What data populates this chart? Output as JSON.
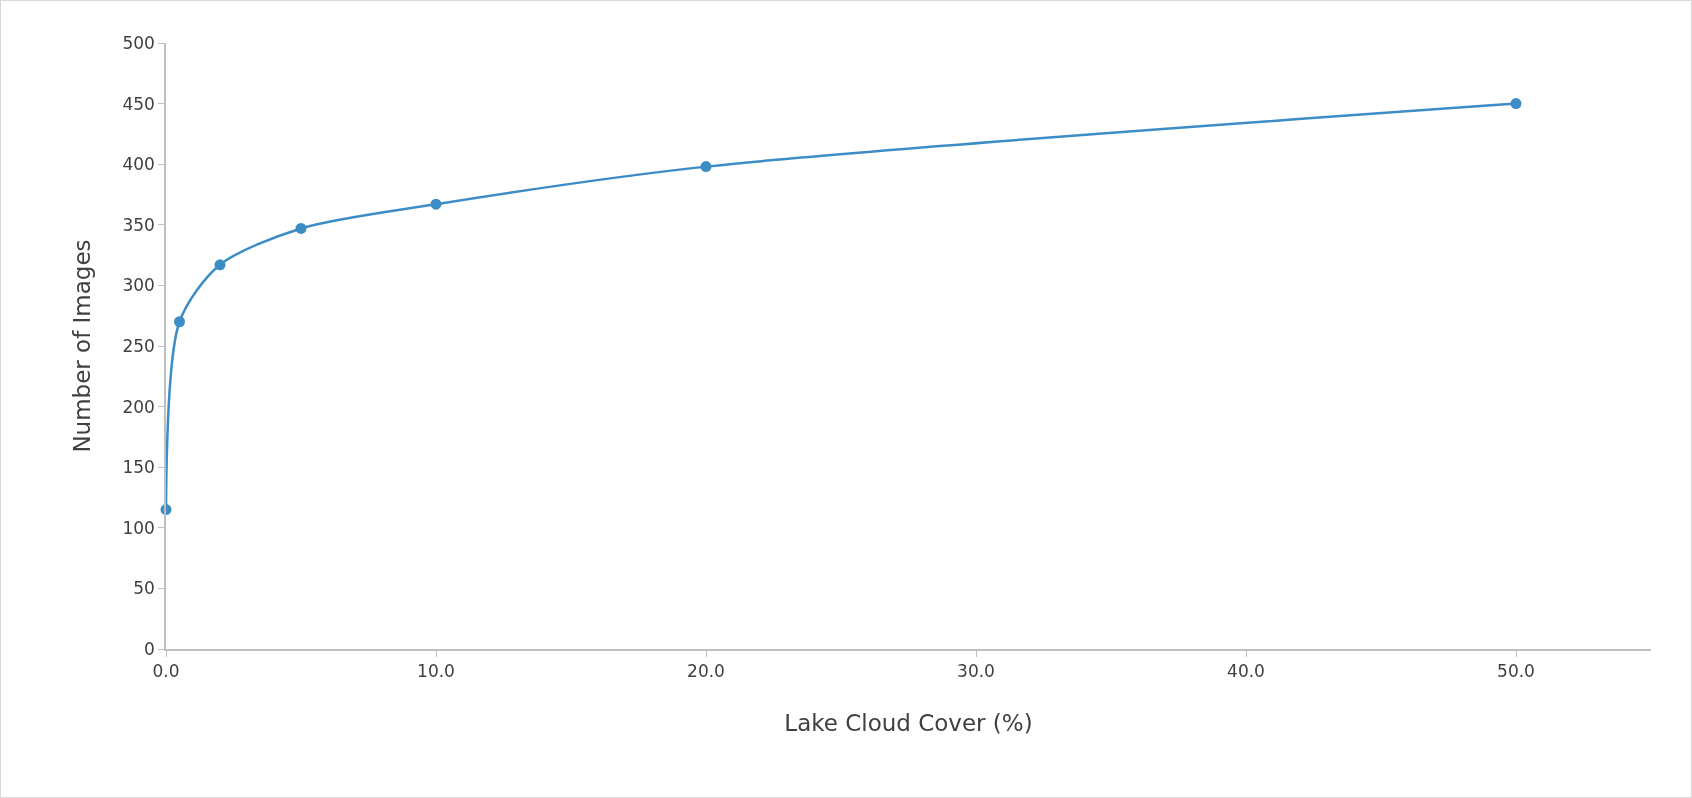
{
  "chart_data": {
    "type": "line",
    "xlabel": "Lake Cloud Cover (%)",
    "ylabel": "Number of Images",
    "x": [
      0,
      0.5,
      2,
      5,
      10,
      20,
      50
    ],
    "series": [
      {
        "color": "#3c8dc5",
        "values": [
          115,
          270,
          317,
          347,
          367,
          398,
          450
        ]
      }
    ],
    "xlim": [
      0,
      55
    ],
    "xticks": [
      {
        "value": 0,
        "label": "0.0"
      },
      {
        "value": 10,
        "label": "10.0"
      },
      {
        "value": 20,
        "label": "20.0"
      },
      {
        "value": 30,
        "label": "30.0"
      },
      {
        "value": 40,
        "label": "40.0"
      },
      {
        "value": 50,
        "label": "50.0"
      }
    ],
    "ylim": [
      0,
      500
    ],
    "yticks": [
      0,
      50,
      100,
      150,
      200,
      250,
      300,
      350,
      400,
      450,
      500
    ],
    "grid": false,
    "marker": "circle",
    "line_style": "solid"
  }
}
